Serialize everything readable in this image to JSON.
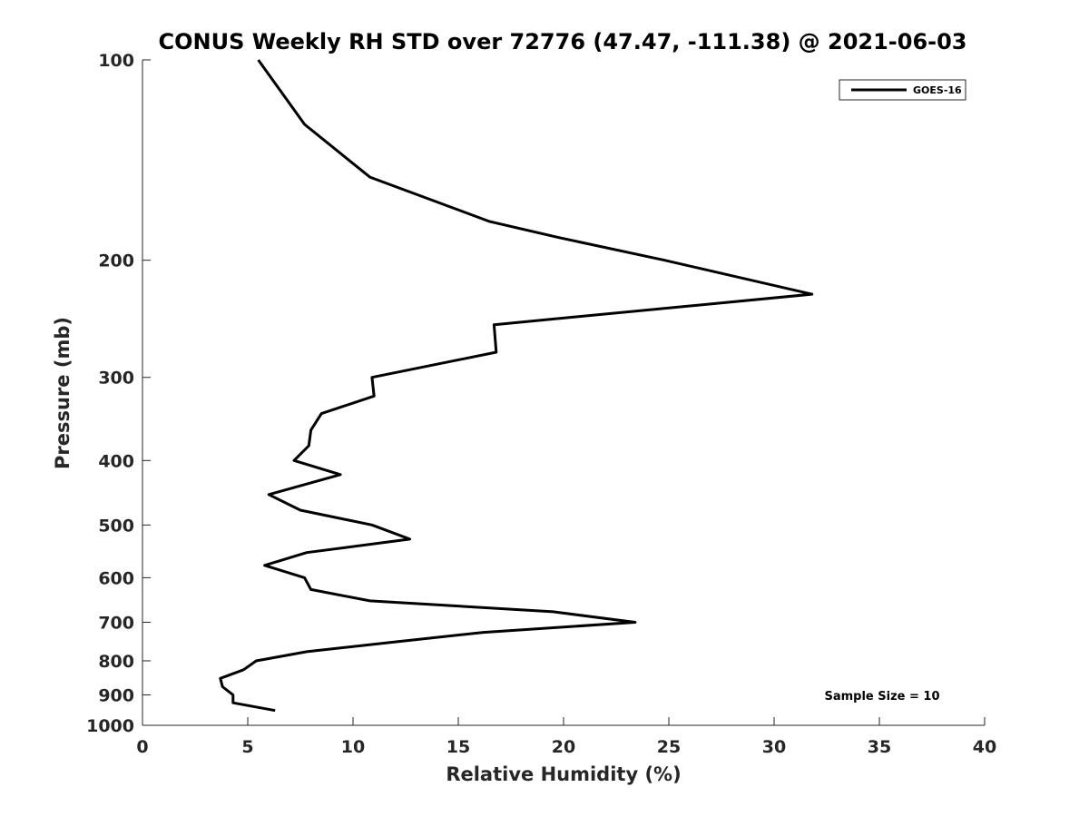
{
  "chart_data": {
    "type": "line",
    "title": "CONUS Weekly RH STD over 72776 (47.47, -111.38) @ 2021-06-03",
    "xlabel": "Relative Humidity (%)",
    "ylabel": "Pressure (mb)",
    "xlim": [
      0,
      40
    ],
    "ylim": [
      100,
      1000
    ],
    "y_scale": "log",
    "y_reversed": true,
    "grid": false,
    "legend_position": "top-right",
    "x_ticks": [
      0,
      5,
      10,
      15,
      20,
      25,
      30,
      35,
      40
    ],
    "y_ticks": [
      100,
      200,
      300,
      400,
      500,
      600,
      700,
      800,
      900,
      1000
    ],
    "annotation": "Sample Size = 10",
    "series": [
      {
        "name": "GOES-16",
        "color": "#000000",
        "points": [
          {
            "x": 5.5,
            "y": 100
          },
          {
            "x": 7.7,
            "y": 125
          },
          {
            "x": 10.8,
            "y": 150
          },
          {
            "x": 16.5,
            "y": 175
          },
          {
            "x": 19.8,
            "y": 185
          },
          {
            "x": 24.8,
            "y": 200
          },
          {
            "x": 31.8,
            "y": 225
          },
          {
            "x": 16.7,
            "y": 250
          },
          {
            "x": 16.8,
            "y": 275
          },
          {
            "x": 10.9,
            "y": 300
          },
          {
            "x": 11.0,
            "y": 320
          },
          {
            "x": 8.5,
            "y": 340
          },
          {
            "x": 8.0,
            "y": 360
          },
          {
            "x": 7.9,
            "y": 380
          },
          {
            "x": 7.2,
            "y": 400
          },
          {
            "x": 9.4,
            "y": 420
          },
          {
            "x": 6.0,
            "y": 450
          },
          {
            "x": 7.5,
            "y": 475
          },
          {
            "x": 10.9,
            "y": 500
          },
          {
            "x": 12.7,
            "y": 525
          },
          {
            "x": 7.8,
            "y": 550
          },
          {
            "x": 5.8,
            "y": 575
          },
          {
            "x": 7.7,
            "y": 600
          },
          {
            "x": 8.0,
            "y": 625
          },
          {
            "x": 10.8,
            "y": 650
          },
          {
            "x": 19.5,
            "y": 675
          },
          {
            "x": 23.4,
            "y": 700
          },
          {
            "x": 16.2,
            "y": 725
          },
          {
            "x": 11.9,
            "y": 750
          },
          {
            "x": 7.8,
            "y": 775
          },
          {
            "x": 5.4,
            "y": 800
          },
          {
            "x": 4.8,
            "y": 825
          },
          {
            "x": 3.7,
            "y": 850
          },
          {
            "x": 3.8,
            "y": 875
          },
          {
            "x": 4.3,
            "y": 900
          },
          {
            "x": 4.3,
            "y": 925
          },
          {
            "x": 6.3,
            "y": 950
          }
        ]
      }
    ]
  }
}
